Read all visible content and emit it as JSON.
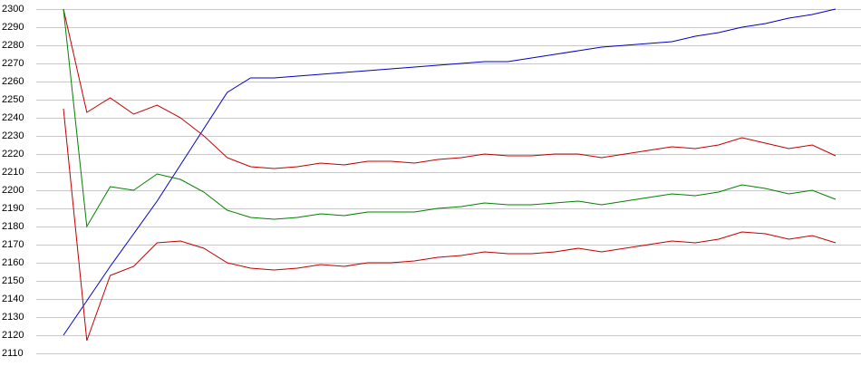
{
  "chart_data": {
    "type": "line",
    "categories": [
      null,
      null,
      null,
      null,
      null,
      null,
      null,
      null,
      null,
      null,
      null,
      null,
      null,
      null,
      null,
      null,
      null,
      null,
      null,
      null,
      null,
      null,
      null,
      null,
      null,
      null,
      null,
      null,
      null,
      null,
      null,
      null,
      null,
      null
    ],
    "series": [
      {
        "color": "#0000c0",
        "values": [
          2120,
          2139,
          2158,
          2176,
          2194,
          2214,
          2234,
          2254,
          2262,
          2262,
          2263,
          2264,
          2265,
          2266,
          2267,
          2268,
          2269,
          2270,
          2271,
          2271,
          2273,
          2275,
          2277,
          2279,
          2280,
          2281,
          2282,
          2285,
          2287,
          2290,
          2292,
          2295,
          2297,
          2300
        ]
      },
      {
        "color": "#c00000",
        "values": [
          2300,
          2243,
          2251,
          2242,
          2247,
          2240,
          2230,
          2218,
          2213,
          2212,
          2213,
          2215,
          2214,
          2216,
          2216,
          2215,
          2217,
          2218,
          2220,
          2219,
          2219,
          2220,
          2220,
          2218,
          2220,
          2222,
          2224,
          2223,
          2225,
          2229,
          2226,
          2223,
          2225,
          2219
        ]
      },
      {
        "color": "#008000",
        "values": [
          2300,
          2180,
          2202,
          2200,
          2209,
          2206,
          2199,
          2189,
          2185,
          2184,
          2185,
          2187,
          2186,
          2188,
          2188,
          2188,
          2190,
          2191,
          2193,
          2192,
          2192,
          2193,
          2194,
          2192,
          2194,
          2196,
          2198,
          2197,
          2199,
          2203,
          2201,
          2198,
          2200,
          2195
        ]
      },
      {
        "color": "#c00000",
        "values": [
          2245,
          2117,
          2153,
          2158,
          2171,
          2172,
          2168,
          2160,
          2157,
          2156,
          2157,
          2159,
          2158,
          2160,
          2160,
          2161,
          2163,
          2164,
          2166,
          2165,
          2165,
          2166,
          2168,
          2166,
          2168,
          2170,
          2172,
          2171,
          2173,
          2177,
          2176,
          2173,
          2175,
          2171
        ]
      }
    ],
    "ylim": [
      2110,
      2300
    ],
    "yticks": [
      2110,
      2120,
      2130,
      2140,
      2150,
      2160,
      2170,
      2180,
      2190,
      2200,
      2210,
      2220,
      2230,
      2240,
      2250,
      2260,
      2270,
      2280,
      2290,
      2300
    ],
    "grid": true
  }
}
